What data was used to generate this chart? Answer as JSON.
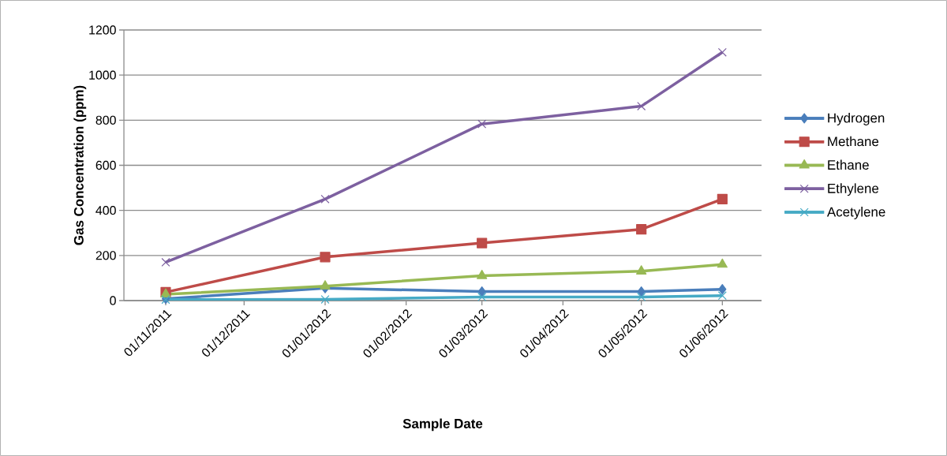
{
  "chart_data": {
    "type": "line",
    "xlabel": "Sample Date",
    "ylabel": "Gas Concentration (ppm)",
    "x": [
      "2011-11-01",
      "2012-01-01",
      "2012-03-01",
      "2012-05-01",
      "2012-06-01"
    ],
    "xlim": [
      "2011-10-16",
      "2012-06-16"
    ],
    "xticks": [
      {
        "value": "2011-11-01",
        "label": "01/11/2011"
      },
      {
        "value": "2011-12-01",
        "label": "01/12/2011"
      },
      {
        "value": "2012-01-01",
        "label": "01/01/2012"
      },
      {
        "value": "2012-02-01",
        "label": "01/02/2012"
      },
      {
        "value": "2012-03-01",
        "label": "01/03/2012"
      },
      {
        "value": "2012-04-01",
        "label": "01/04/2012"
      },
      {
        "value": "2012-05-01",
        "label": "01/05/2012"
      },
      {
        "value": "2012-06-01",
        "label": "01/06/2012"
      }
    ],
    "ylim": [
      0,
      1200
    ],
    "yticks": [
      0,
      200,
      400,
      600,
      800,
      1000,
      1200
    ],
    "grid": "y",
    "legend": "right",
    "line_style": "solid",
    "series": [
      {
        "name": "Hydrogen",
        "color": "#4a7ebb",
        "marker": "diamond",
        "values": [
          8,
          55,
          40,
          40,
          50
        ]
      },
      {
        "name": "Methane",
        "color": "#be4b48",
        "marker": "square",
        "values": [
          37,
          193,
          255,
          316,
          450
        ]
      },
      {
        "name": "Ethane",
        "color": "#98b954",
        "marker": "triangle",
        "values": [
          28,
          64,
          110,
          130,
          160
        ]
      },
      {
        "name": "Ethylene",
        "color": "#7d60a0",
        "marker": "cross",
        "values": [
          170,
          450,
          783,
          862,
          1101
        ]
      },
      {
        "name": "Acetylene",
        "color": "#46aac5",
        "marker": "cross",
        "values": [
          4,
          5,
          16,
          16,
          22
        ]
      }
    ]
  }
}
